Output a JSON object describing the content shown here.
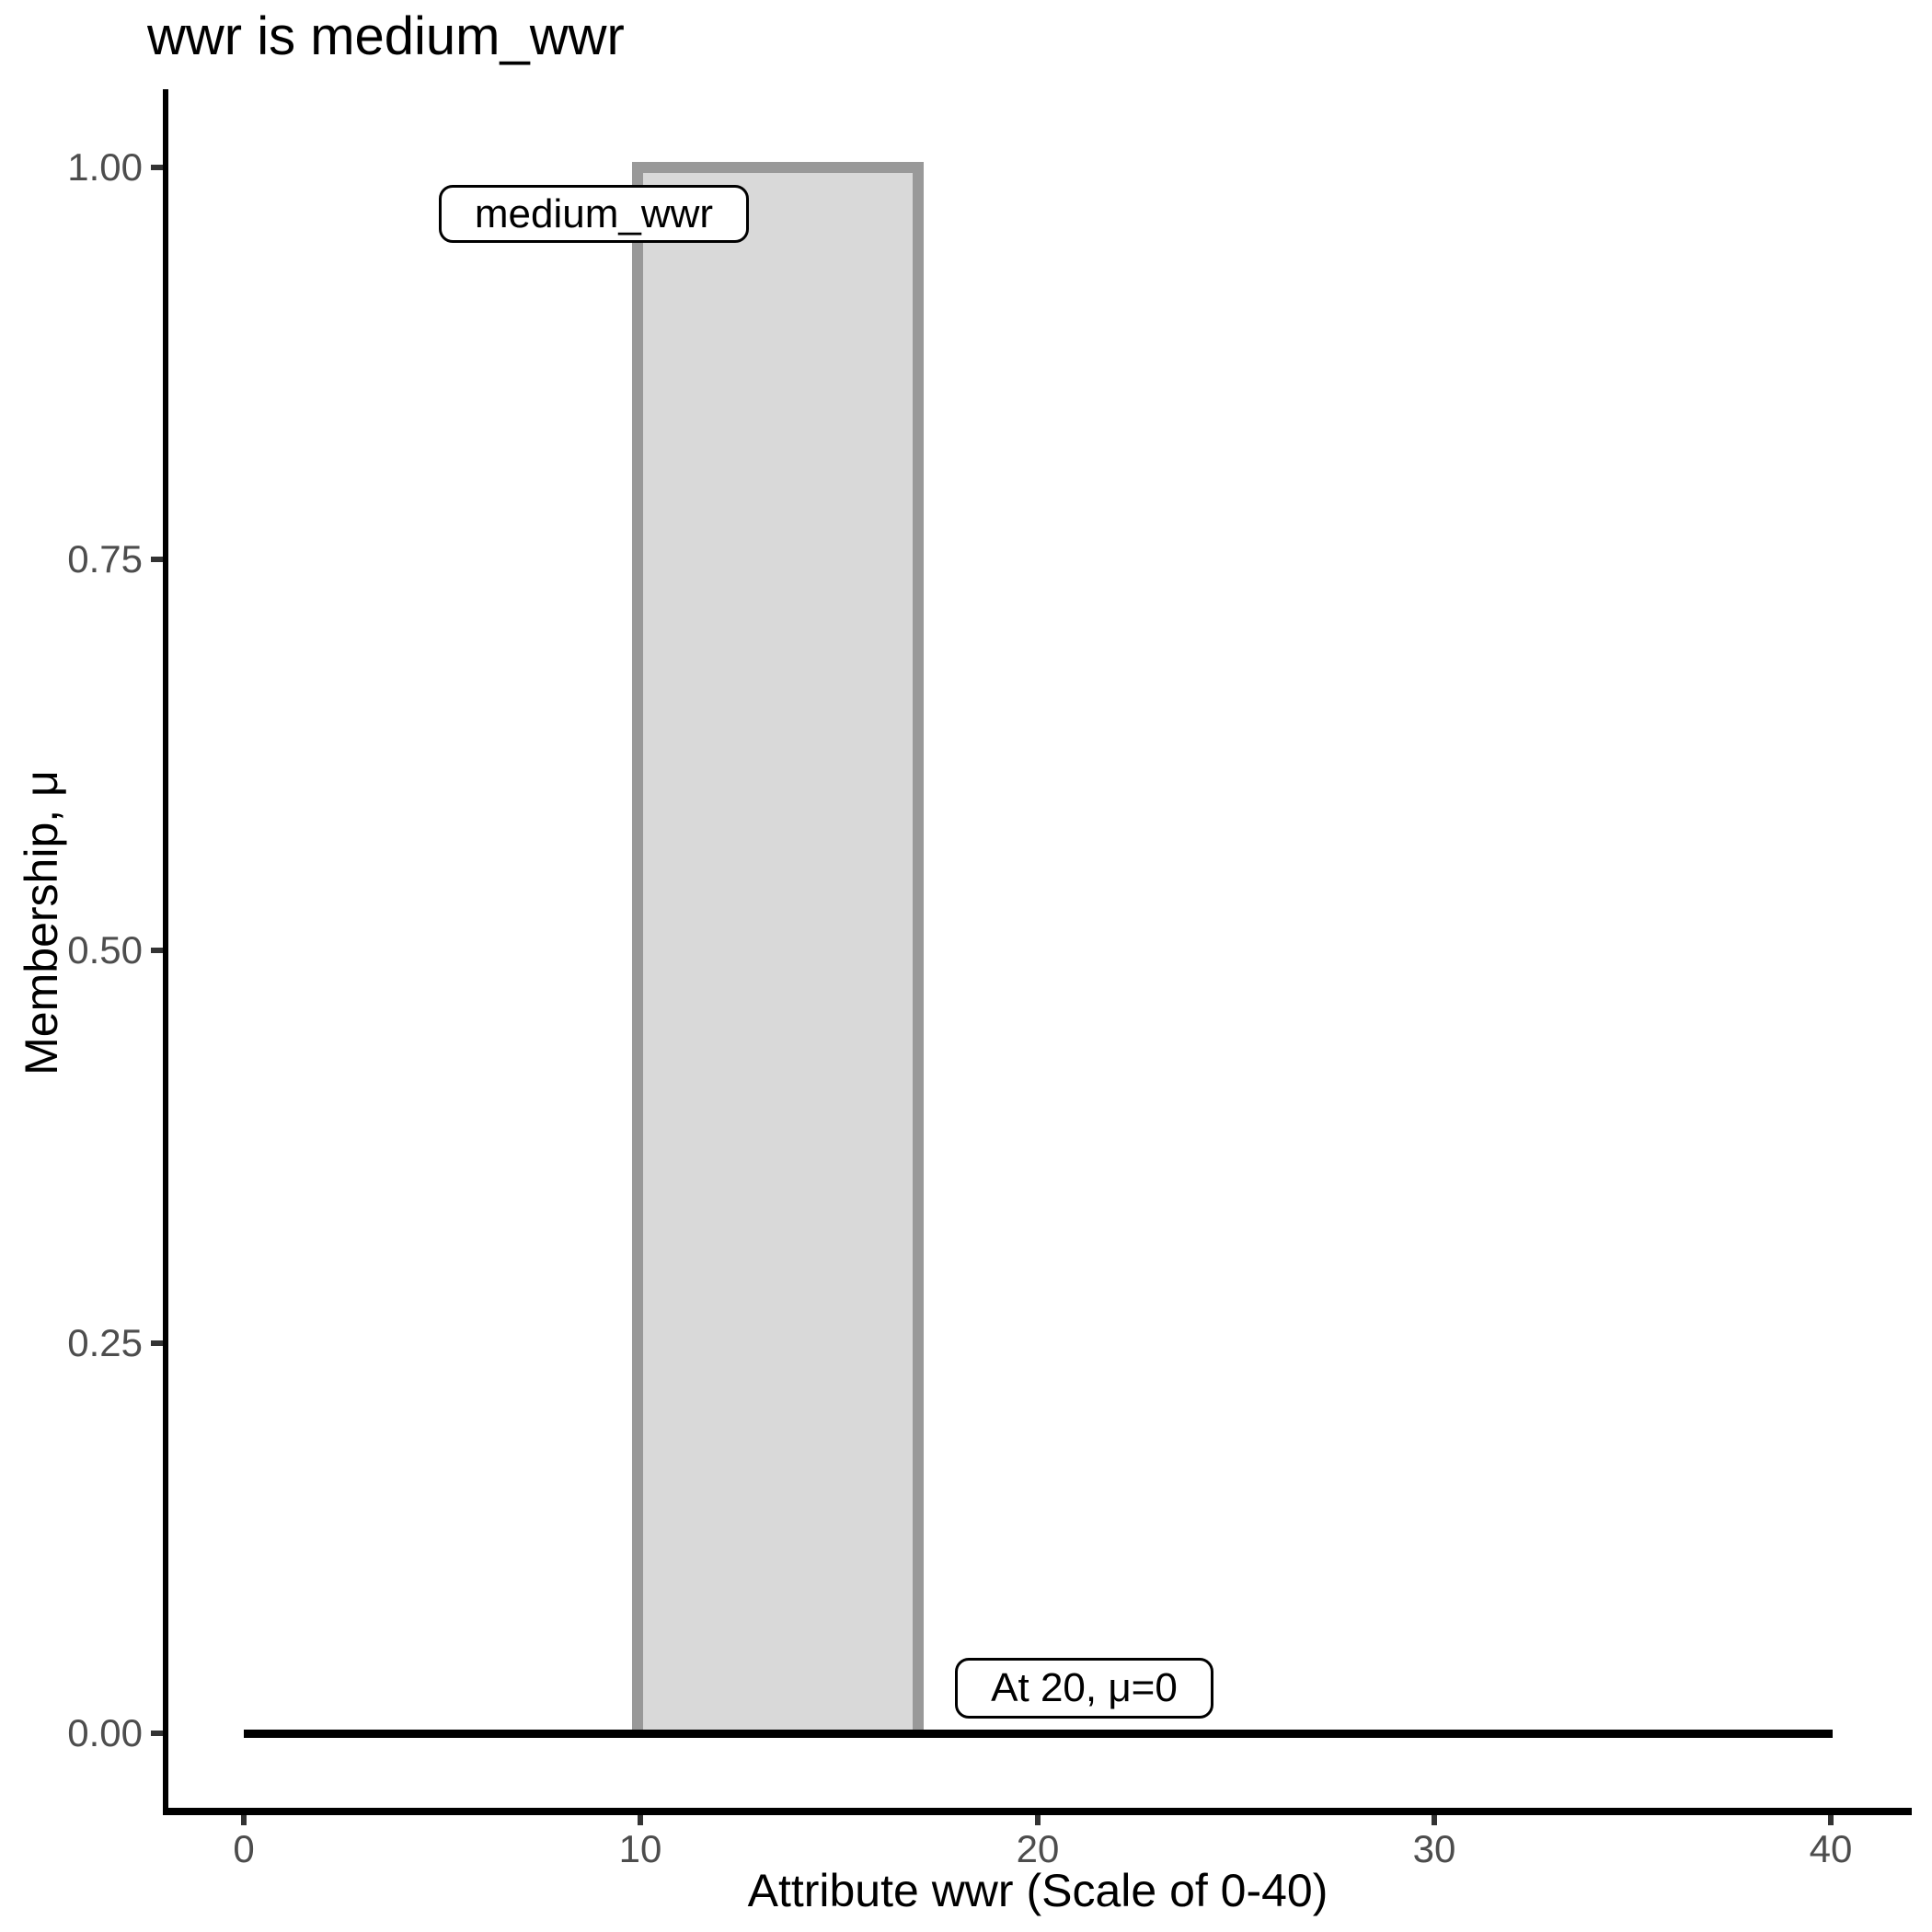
{
  "title": "wwr is medium_wwr",
  "colors": {
    "bar_fill": "#d9d9d9",
    "bar_stroke": "#999999",
    "axis_line": "#000000",
    "tick_mark": "#333333",
    "tick_label": "#4d4d4d",
    "annotation_border": "#000000",
    "annotation_bg": "#ffffff"
  },
  "chart_data": {
    "type": "area",
    "title": "wwr is medium_wwr",
    "xlabel": "Attribute wwr (Scale of 0-40)",
    "ylabel": "Membership, μ",
    "xlim": [
      0,
      40
    ],
    "ylim": [
      0,
      1
    ],
    "grid": "off",
    "legend": "none",
    "x_ticks": [
      "0",
      "10",
      "20",
      "30",
      "40"
    ],
    "y_ticks": [
      "0.00",
      "0.25",
      "0.50",
      "0.75",
      "1.00"
    ],
    "series": [
      {
        "name": "medium_wwr",
        "description": "crisp membership function: mu=1 for x in [10,17], mu=0 elsewhere on [0,40]",
        "points": [
          [
            0,
            0
          ],
          [
            10,
            0
          ],
          [
            10,
            1
          ],
          [
            17,
            1
          ],
          [
            17,
            0
          ],
          [
            40,
            0
          ]
        ],
        "fill": "#d9d9d9",
        "stroke": "#999999"
      }
    ],
    "annotations": [
      {
        "text": "medium_wwr",
        "x": 8.8,
        "y": 0.97
      },
      {
        "text": "At 20, μ=0",
        "x": 21.3,
        "y": 0.03
      }
    ]
  }
}
